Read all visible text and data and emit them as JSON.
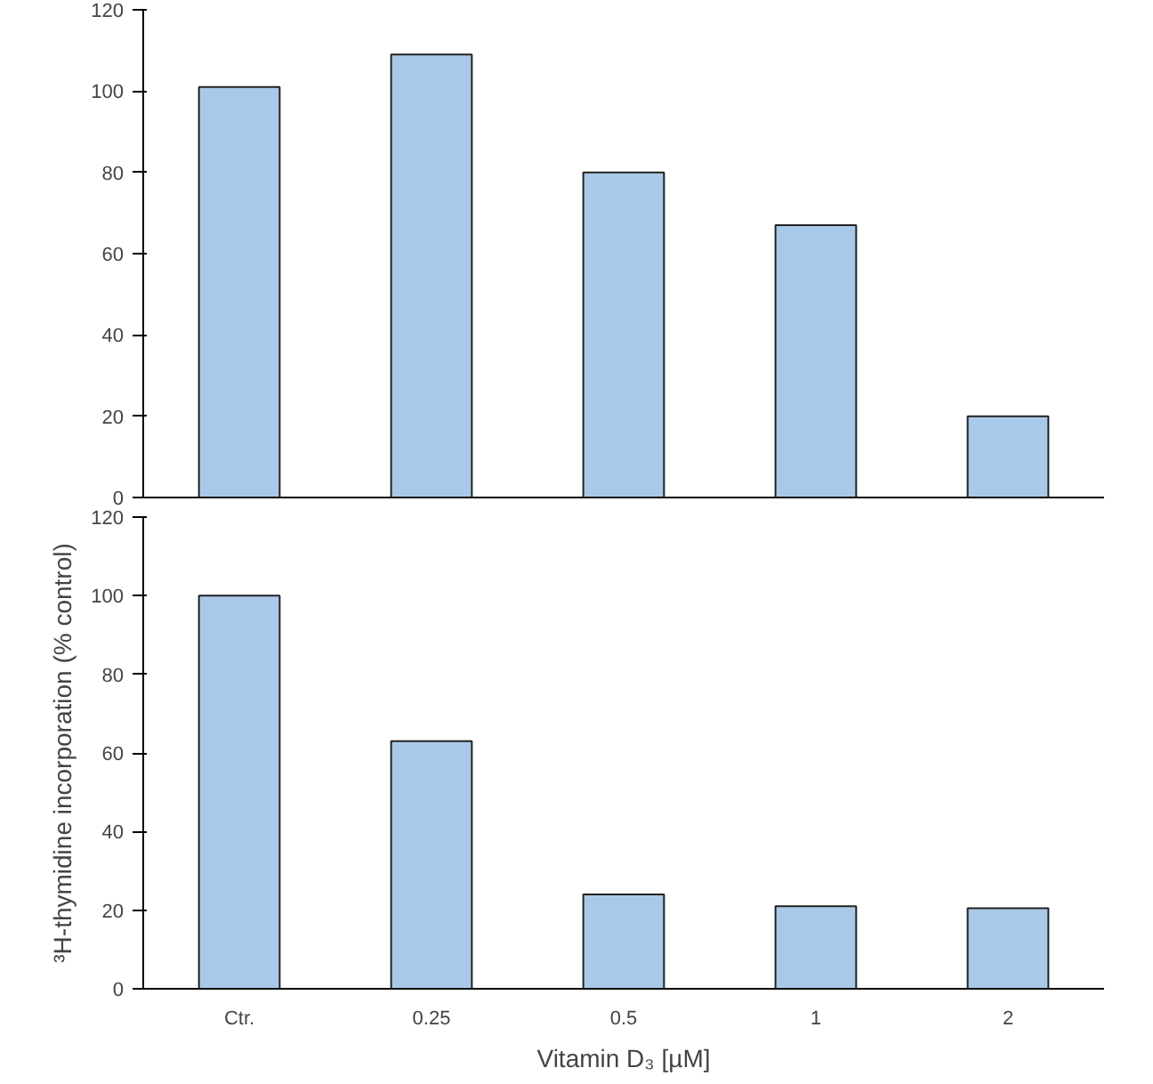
{
  "chart_data": [
    {
      "type": "bar",
      "categories": [
        null,
        null,
        null,
        null,
        null
      ],
      "values": [
        101,
        109,
        80,
        67,
        20
      ],
      "color": "#a9c9e9",
      "ylim": [
        0,
        120
      ],
      "yticks": [
        0,
        20,
        40,
        60,
        80,
        100,
        120
      ],
      "grid": false,
      "tick_labels": "y"
    },
    {
      "type": "bar",
      "categories": [
        "Ctr.",
        "0.25",
        "0.5",
        "1",
        "2"
      ],
      "values": [
        100,
        63,
        24,
        21,
        20.5
      ],
      "color": "#a9c9e9",
      "ylim": [
        0,
        120
      ],
      "yticks": [
        0,
        20,
        40,
        60,
        80,
        100,
        120
      ],
      "grid": false,
      "xlabel": "Vitamin D₃ [µM]",
      "ylabel": "³H-thymidine incorporation (% control)"
    }
  ]
}
